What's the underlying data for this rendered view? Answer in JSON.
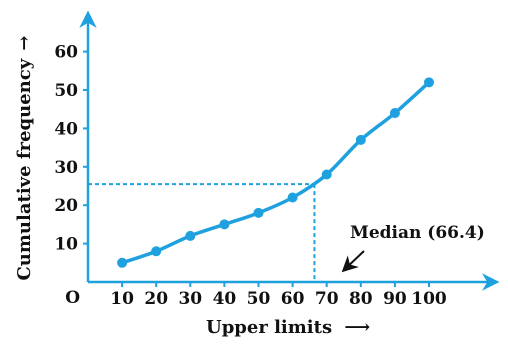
{
  "chart_data": {
    "type": "line",
    "title": "",
    "xlabel": "Upper limits",
    "xlabel_arrow": "⟶",
    "ylabel": "Cumulative frequency",
    "ylabel_arrow": "→",
    "origin_label": "O",
    "x_ticks": [
      10,
      20,
      30,
      40,
      50,
      60,
      70,
      80,
      90,
      100
    ],
    "y_ticks": [
      10,
      20,
      30,
      40,
      50,
      60
    ],
    "xlim": [
      0,
      105
    ],
    "ylim": [
      0,
      68
    ],
    "grid": false,
    "series": [
      {
        "x": [
          10,
          20,
          30,
          40,
          50,
          60,
          70,
          80,
          90,
          100
        ],
        "y": [
          5,
          8,
          12,
          15,
          18,
          22,
          28,
          37,
          44,
          52
        ]
      }
    ],
    "median_line": {
      "x": 66.4,
      "y": 25.5
    },
    "annotation": "Median (66.4)",
    "colors": {
      "line": "#1ea1de",
      "axis": "#1ea1de",
      "text": "#111111"
    }
  }
}
